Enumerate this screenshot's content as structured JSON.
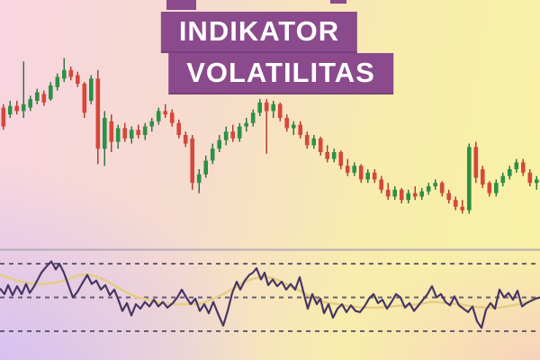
{
  "title": {
    "line1": "INDIKATOR",
    "line2": "VOLATILITAS",
    "banner_color": "#8a4a8c",
    "text_color": "#ffffff"
  },
  "background": {
    "top_left": "#f8d5e2",
    "top_right": "#f9f2a4",
    "bottom_left": "#d3bef2",
    "bottom_right": "#f6cfc0"
  },
  "chart_data": [
    {
      "type": "candlestick",
      "title": "",
      "panel": "price",
      "axes_visible": false,
      "grid": false,
      "value_scale": "normalized 0-100 (no axis labels shown)",
      "up_color": "#2c9146",
      "down_color": "#d7473b",
      "up_wick_color": "#256e38",
      "down_wick_color": "#a93527",
      "candles_ohlc": [
        [
          66,
          68,
          53,
          55
        ],
        [
          62,
          70,
          60,
          67
        ],
        [
          67,
          70,
          62,
          64
        ],
        [
          64,
          93,
          60,
          68
        ],
        [
          66,
          73,
          64,
          71
        ],
        [
          70,
          77,
          68,
          75
        ],
        [
          74,
          76,
          67,
          69
        ],
        [
          71,
          81,
          70,
          79
        ],
        [
          78,
          86,
          76,
          84
        ],
        [
          83,
          95,
          81,
          88
        ],
        [
          88,
          90,
          82,
          84
        ],
        [
          85,
          87,
          78,
          80
        ],
        [
          80,
          81,
          60,
          63
        ],
        [
          70,
          85,
          68,
          83
        ],
        [
          83,
          88,
          33,
          42
        ],
        [
          42,
          64,
          32,
          60
        ],
        [
          58,
          62,
          40,
          46
        ],
        [
          46,
          56,
          42,
          54
        ],
        [
          54,
          57,
          46,
          48
        ],
        [
          48,
          55,
          45,
          53
        ],
        [
          53,
          56,
          48,
          50
        ],
        [
          50,
          57,
          47,
          55
        ],
        [
          55,
          60,
          52,
          58
        ],
        [
          58,
          66,
          56,
          64
        ],
        [
          64,
          68,
          60,
          62
        ],
        [
          63,
          65,
          55,
          57
        ],
        [
          57,
          59,
          48,
          50
        ],
        [
          50,
          52,
          43,
          45
        ],
        [
          48,
          50,
          18,
          22
        ],
        [
          22,
          30,
          16,
          27
        ],
        [
          27,
          38,
          25,
          35
        ],
        [
          35,
          45,
          33,
          42
        ],
        [
          42,
          50,
          40,
          47
        ],
        [
          47,
          55,
          44,
          52
        ],
        [
          52,
          56,
          46,
          48
        ],
        [
          48,
          57,
          46,
          55
        ],
        [
          55,
          60,
          52,
          57
        ],
        [
          57,
          65,
          55,
          63
        ],
        [
          63,
          71,
          61,
          69
        ],
        [
          69,
          71,
          39,
          64
        ],
        [
          64,
          70,
          60,
          68
        ],
        [
          68,
          69,
          58,
          60
        ],
        [
          60,
          62,
          52,
          54
        ],
        [
          54,
          58,
          50,
          56
        ],
        [
          56,
          58,
          48,
          50
        ],
        [
          50,
          52,
          42,
          44
        ],
        [
          44,
          50,
          42,
          48
        ],
        [
          48,
          49,
          38,
          40
        ],
        [
          40,
          44,
          34,
          36
        ],
        [
          36,
          42,
          34,
          40
        ],
        [
          40,
          41,
          30,
          32
        ],
        [
          32,
          36,
          26,
          28
        ],
        [
          28,
          34,
          26,
          32
        ],
        [
          32,
          33,
          22,
          24
        ],
        [
          24,
          30,
          22,
          28
        ],
        [
          28,
          30,
          22,
          24
        ],
        [
          24,
          26,
          16,
          18
        ],
        [
          18,
          22,
          12,
          14
        ],
        [
          14,
          20,
          12,
          18
        ],
        [
          18,
          19,
          10,
          12
        ],
        [
          12,
          18,
          10,
          16
        ],
        [
          16,
          20,
          12,
          14
        ],
        [
          14,
          19,
          12,
          17
        ],
        [
          17,
          22,
          15,
          20
        ],
        [
          20,
          24,
          18,
          22
        ],
        [
          22,
          23,
          14,
          16
        ],
        [
          16,
          18,
          10,
          12
        ],
        [
          12,
          14,
          6,
          8
        ],
        [
          8,
          12,
          4,
          6
        ],
        [
          6,
          45,
          4,
          43
        ],
        [
          43,
          46,
          22,
          25
        ],
        [
          30,
          32,
          19,
          21
        ],
        [
          22,
          23,
          14,
          16
        ],
        [
          16,
          24,
          14,
          22
        ],
        [
          22,
          28,
          20,
          26
        ],
        [
          26,
          32,
          24,
          30
        ],
        [
          30,
          36,
          28,
          34
        ],
        [
          34,
          36,
          26,
          28
        ],
        [
          28,
          30,
          20,
          22
        ],
        [
          22,
          26,
          18,
          24
        ]
      ]
    },
    {
      "type": "line",
      "title": "",
      "panel": "oscillator",
      "axes_visible": false,
      "x_range": [
        0,
        600
      ],
      "value_range": [
        0,
        100
      ],
      "levels": [
        80,
        50,
        20
      ],
      "level_line_style": "dashed",
      "level_color": "#51485f",
      "separator_color": "#b5acb6",
      "series": [
        {
          "name": "volatility-oscillator",
          "color": "#473663",
          "points": [
            [
              0,
              58
            ],
            [
              5,
              53
            ],
            [
              9,
              61
            ],
            [
              14,
              52
            ],
            [
              19,
              60
            ],
            [
              24,
              53
            ],
            [
              29,
              62
            ],
            [
              33,
              54
            ],
            [
              38,
              60
            ],
            [
              42,
              66
            ],
            [
              46,
              72
            ],
            [
              51,
              77
            ],
            [
              57,
              82
            ],
            [
              62,
              75
            ],
            [
              66,
              80
            ],
            [
              71,
              72
            ],
            [
              76,
              61
            ],
            [
              81,
              50
            ],
            [
              86,
              55
            ],
            [
              91,
              62
            ],
            [
              97,
              70
            ],
            [
              102,
              62
            ],
            [
              107,
              65
            ],
            [
              112,
              57
            ],
            [
              117,
              61
            ],
            [
              122,
              52
            ],
            [
              127,
              57
            ],
            [
              131,
              49
            ],
            [
              136,
              38
            ],
            [
              141,
              45
            ],
            [
              146,
              34
            ],
            [
              151,
              44
            ],
            [
              156,
              40
            ],
            [
              161,
              46
            ],
            [
              166,
              42
            ],
            [
              171,
              48
            ],
            [
              176,
              42
            ],
            [
              181,
              46
            ],
            [
              186,
              41
            ],
            [
              192,
              45
            ],
            [
              197,
              50
            ],
            [
              202,
              57
            ],
            [
              207,
              50
            ],
            [
              212,
              44
            ],
            [
              217,
              49
            ],
            [
              222,
              38
            ],
            [
              227,
              44
            ],
            [
              232,
              36
            ],
            [
              237,
              46
            ],
            [
              242,
              36
            ],
            [
              248,
              25
            ],
            [
              253,
              38
            ],
            [
              258,
              54
            ],
            [
              263,
              64
            ],
            [
              267,
              57
            ],
            [
              272,
              65
            ],
            [
              277,
              70
            ],
            [
              281,
              72
            ],
            [
              285,
              76
            ],
            [
              290,
              66
            ],
            [
              294,
              72
            ],
            [
              298,
              61
            ],
            [
              303,
              66
            ],
            [
              308,
              60
            ],
            [
              313,
              64
            ],
            [
              318,
              57
            ],
            [
              323,
              62
            ],
            [
              328,
              57
            ],
            [
              333,
              68
            ],
            [
              338,
              52
            ],
            [
              342,
              40
            ],
            [
              347,
              53
            ],
            [
              352,
              44
            ],
            [
              356,
              49
            ],
            [
              360,
              36
            ],
            [
              365,
              44
            ],
            [
              370,
              32
            ],
            [
              375,
              40
            ],
            [
              380,
              44
            ],
            [
              385,
              37
            ],
            [
              390,
              43
            ],
            [
              395,
              38
            ],
            [
              400,
              37
            ],
            [
              405,
              42
            ],
            [
              410,
              49
            ],
            [
              415,
              53
            ],
            [
              420,
              45
            ],
            [
              425,
              48
            ],
            [
              430,
              40
            ],
            [
              435,
              46
            ],
            [
              440,
              53
            ],
            [
              445,
              50
            ],
            [
              450,
              41
            ],
            [
              455,
              45
            ],
            [
              460,
              38
            ],
            [
              465,
              43
            ],
            [
              470,
              48
            ],
            [
              475,
              53
            ],
            [
              480,
              60
            ],
            [
              485,
              50
            ],
            [
              490,
              53
            ],
            [
              495,
              46
            ],
            [
              500,
              43
            ],
            [
              505,
              51
            ],
            [
              510,
              43
            ],
            [
              515,
              40
            ],
            [
              520,
              37
            ],
            [
              525,
              42
            ],
            [
              530,
              29
            ],
            [
              535,
              23
            ],
            [
              540,
              39
            ],
            [
              545,
              45
            ],
            [
              550,
              40
            ],
            [
              555,
              57
            ],
            [
              560,
              50
            ],
            [
              565,
              54
            ],
            [
              570,
              48
            ],
            [
              575,
              56
            ],
            [
              580,
              42
            ],
            [
              585,
              45
            ],
            [
              590,
              47
            ],
            [
              595,
              49
            ],
            [
              600,
              50
            ]
          ]
        },
        {
          "name": "signal-moving-average",
          "color": "#e5cd86",
          "points": [
            [
              0,
              70
            ],
            [
              15,
              66
            ],
            [
              30,
              63
            ],
            [
              45,
              62
            ],
            [
              60,
              63
            ],
            [
              75,
              66
            ],
            [
              90,
              70
            ],
            [
              105,
              69
            ],
            [
              120,
              64
            ],
            [
              135,
              57
            ],
            [
              150,
              51
            ],
            [
              165,
              48
            ],
            [
              180,
              45
            ],
            [
              195,
              44
            ],
            [
              210,
              44
            ],
            [
              225,
              45
            ],
            [
              240,
              50
            ],
            [
              255,
              56
            ],
            [
              270,
              63
            ],
            [
              283,
              67
            ],
            [
              295,
              68
            ],
            [
              307,
              66
            ],
            [
              320,
              61
            ],
            [
              333,
              56
            ],
            [
              347,
              50
            ],
            [
              360,
              46
            ],
            [
              375,
              44
            ],
            [
              390,
              42
            ],
            [
              405,
              41
            ],
            [
              420,
              41
            ],
            [
              435,
              42
            ],
            [
              450,
              43
            ],
            [
              465,
              44
            ],
            [
              480,
              46
            ],
            [
              495,
              45
            ],
            [
              510,
              44
            ],
            [
              525,
              42
            ],
            [
              540,
              41
            ],
            [
              555,
              41
            ],
            [
              570,
              43
            ],
            [
              585,
              46
            ],
            [
              600,
              50
            ]
          ]
        }
      ]
    }
  ]
}
